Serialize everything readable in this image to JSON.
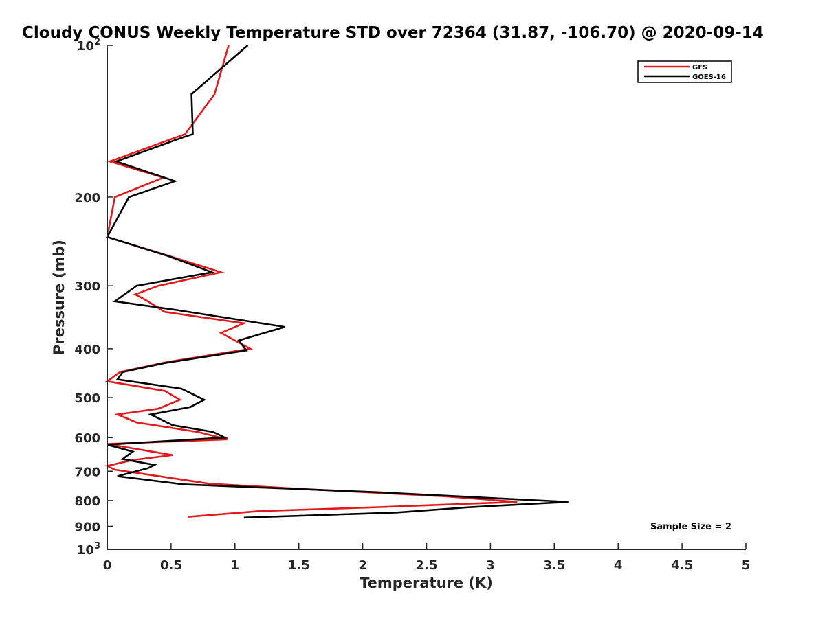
{
  "chart_data": {
    "type": "line",
    "title": "Cloudy CONUS Weekly Temperature STD over 72364 (31.87, -106.70) @ 2020-09-14",
    "xlabel": "Temperature (K)",
    "ylabel": "Pressure (mb)",
    "xlim": [
      0,
      5
    ],
    "ylim": [
      100,
      1000
    ],
    "y_scale": "log",
    "y_reversed": true,
    "grid": false,
    "legend_position": "top-right",
    "x_ticks": [
      {
        "value": 0,
        "label": "0"
      },
      {
        "value": 0.5,
        "label": "0.5"
      },
      {
        "value": 1,
        "label": "1"
      },
      {
        "value": 1.5,
        "label": "1.5"
      },
      {
        "value": 2,
        "label": "2"
      },
      {
        "value": 2.5,
        "label": "2.5"
      },
      {
        "value": 3,
        "label": "3"
      },
      {
        "value": 3.5,
        "label": "3.5"
      },
      {
        "value": 4,
        "label": "4"
      },
      {
        "value": 4.5,
        "label": "4.5"
      },
      {
        "value": 5,
        "label": "5"
      }
    ],
    "y_ticks": [
      {
        "value": 100,
        "base": "10",
        "exp": "2"
      },
      {
        "value": 200,
        "label": "200"
      },
      {
        "value": 300,
        "label": "300"
      },
      {
        "value": 400,
        "label": "400"
      },
      {
        "value": 500,
        "label": "500"
      },
      {
        "value": 600,
        "label": "600"
      },
      {
        "value": 700,
        "label": "700"
      },
      {
        "value": 800,
        "label": "800"
      },
      {
        "value": 900,
        "label": "900"
      },
      {
        "value": 1000,
        "base": "10",
        "exp": "3"
      }
    ],
    "series": [
      {
        "name": "GFS",
        "color": "#e31a1c",
        "x": [
          0.95,
          0.84,
          0.61,
          0.02,
          0.44,
          0.06,
          0.0,
          0.49,
          0.89,
          0.4,
          0.22,
          0.3,
          0.45,
          1.07,
          0.89,
          1.12,
          0.47,
          0.1,
          0.0,
          0.45,
          0.57,
          0.4,
          0.08,
          0.23,
          0.71,
          0.94,
          0.0,
          0.51,
          0.2,
          0.0,
          0.06,
          0.34,
          0.8,
          1.66,
          2.65,
          3.21,
          2.1,
          1.18,
          0.63
        ],
        "y": [
          100,
          125,
          150,
          170,
          183,
          200,
          240,
          262,
          282,
          300,
          312,
          320,
          338,
          356,
          372,
          400,
          425,
          445,
          464,
          485,
          505,
          526,
          540,
          560,
          585,
          605,
          618,
          650,
          665,
          683,
          695,
          712,
          741,
          762,
          785,
          805,
          825,
          840,
          862
        ]
      },
      {
        "name": "GOES-16",
        "color": "#000000",
        "x": [
          1.1,
          0.66,
          0.67,
          0.6,
          0.07,
          0.53,
          0.17,
          0.0,
          0.48,
          0.82,
          0.23,
          0.06,
          0.54,
          1.39,
          1.03,
          1.09,
          0.45,
          0.12,
          0.08,
          0.58,
          0.76,
          0.65,
          0.34,
          0.51,
          0.83,
          0.92,
          0.0,
          0.2,
          0.12,
          0.37,
          0.32,
          0.08,
          0.59,
          2.1,
          3.61,
          2.83,
          2.27,
          1.07
        ],
        "y": [
          100,
          125,
          150,
          152,
          170,
          186,
          200,
          240,
          262,
          282,
          300,
          322,
          335,
          362,
          385,
          403,
          427,
          445,
          460,
          480,
          505,
          522,
          540,
          567,
          585,
          600,
          620,
          640,
          662,
          680,
          690,
          716,
          743,
          770,
          805,
          825,
          845,
          865
        ]
      }
    ],
    "annotations": [
      "Sample Size = 2"
    ]
  }
}
